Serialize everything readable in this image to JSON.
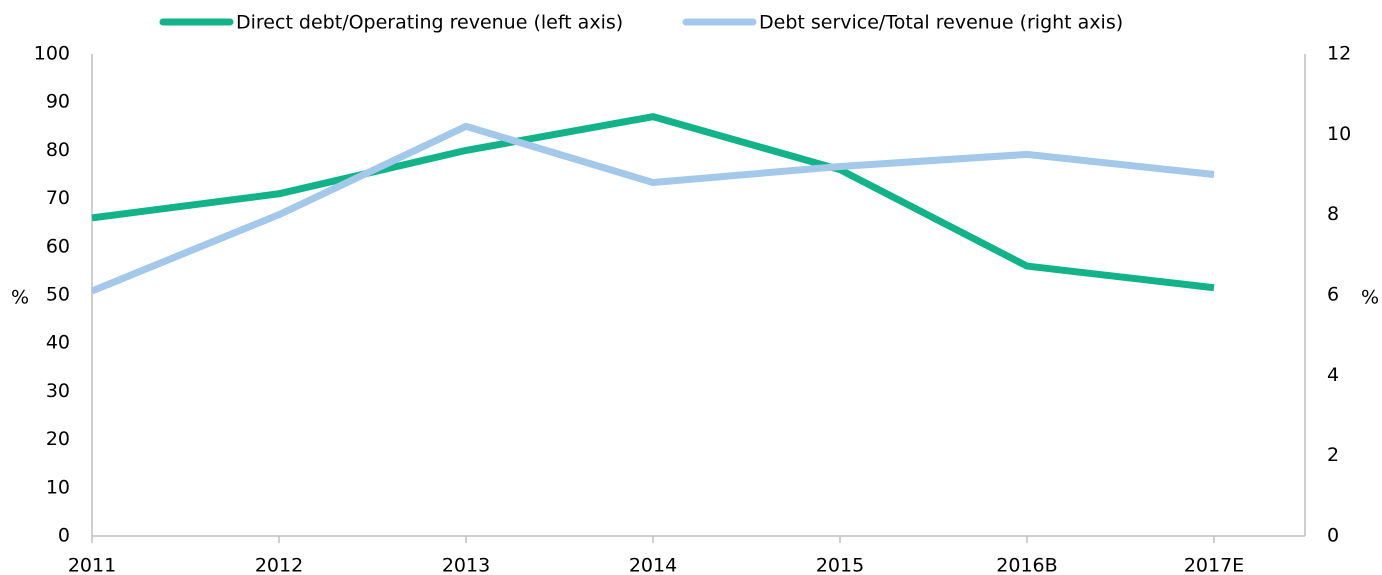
{
  "chart_data": {
    "type": "line",
    "categories": [
      "2011",
      "2012",
      "2013",
      "2014",
      "2015",
      "2016B",
      "2017E"
    ],
    "series": [
      {
        "name": "Direct debt/Operating revenue (left axis)",
        "color": "#13b389",
        "values": [
          66,
          71,
          80,
          87,
          76,
          56,
          51.5
        ]
      },
      {
        "name": "Debt service/Total revenue (right axis)",
        "color": "#a3c8ea",
        "axis": "y2",
        "values": [
          6.1,
          8.0,
          10.2,
          8.8,
          9.2,
          9.5,
          9.0
        ]
      }
    ],
    "ylabel": "%",
    "y2label": "%",
    "ylim": [
      0,
      100
    ],
    "yticks": [
      0,
      10,
      20,
      30,
      40,
      50,
      60,
      70,
      80,
      90,
      100
    ],
    "y2lim": [
      0,
      12
    ],
    "y2ticks": [
      0,
      2,
      4,
      6,
      8,
      10,
      12
    ],
    "grid": false,
    "legend": "top"
  }
}
